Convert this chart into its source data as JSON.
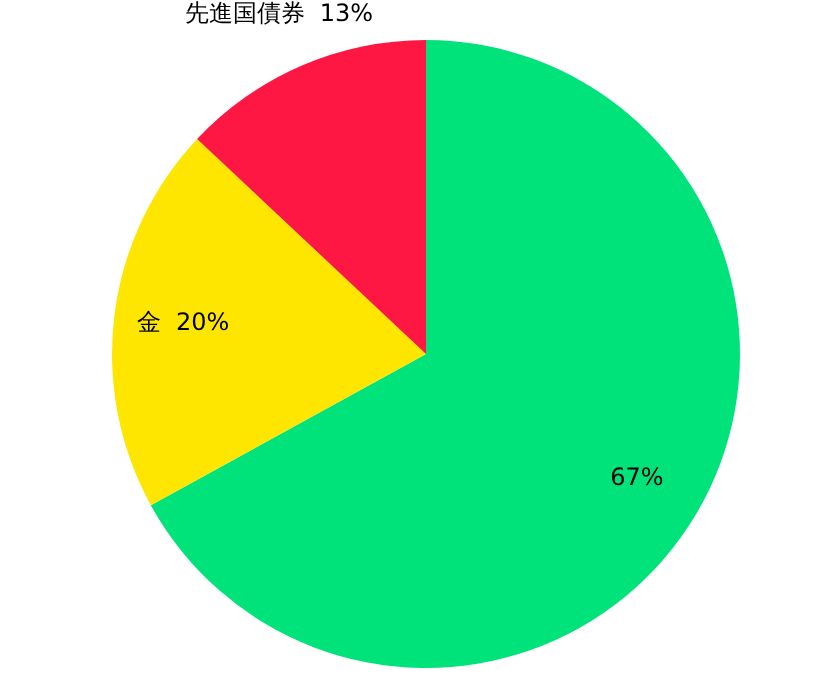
{
  "chart_data": {
    "type": "pie",
    "categories": [
      null,
      "金",
      "先進国債券"
    ],
    "values": [
      67,
      20,
      13
    ],
    "value_labels": [
      "67%",
      "20%",
      "13%"
    ],
    "colors": [
      "#00e27a",
      "#ffe600",
      "#ff1744"
    ]
  }
}
